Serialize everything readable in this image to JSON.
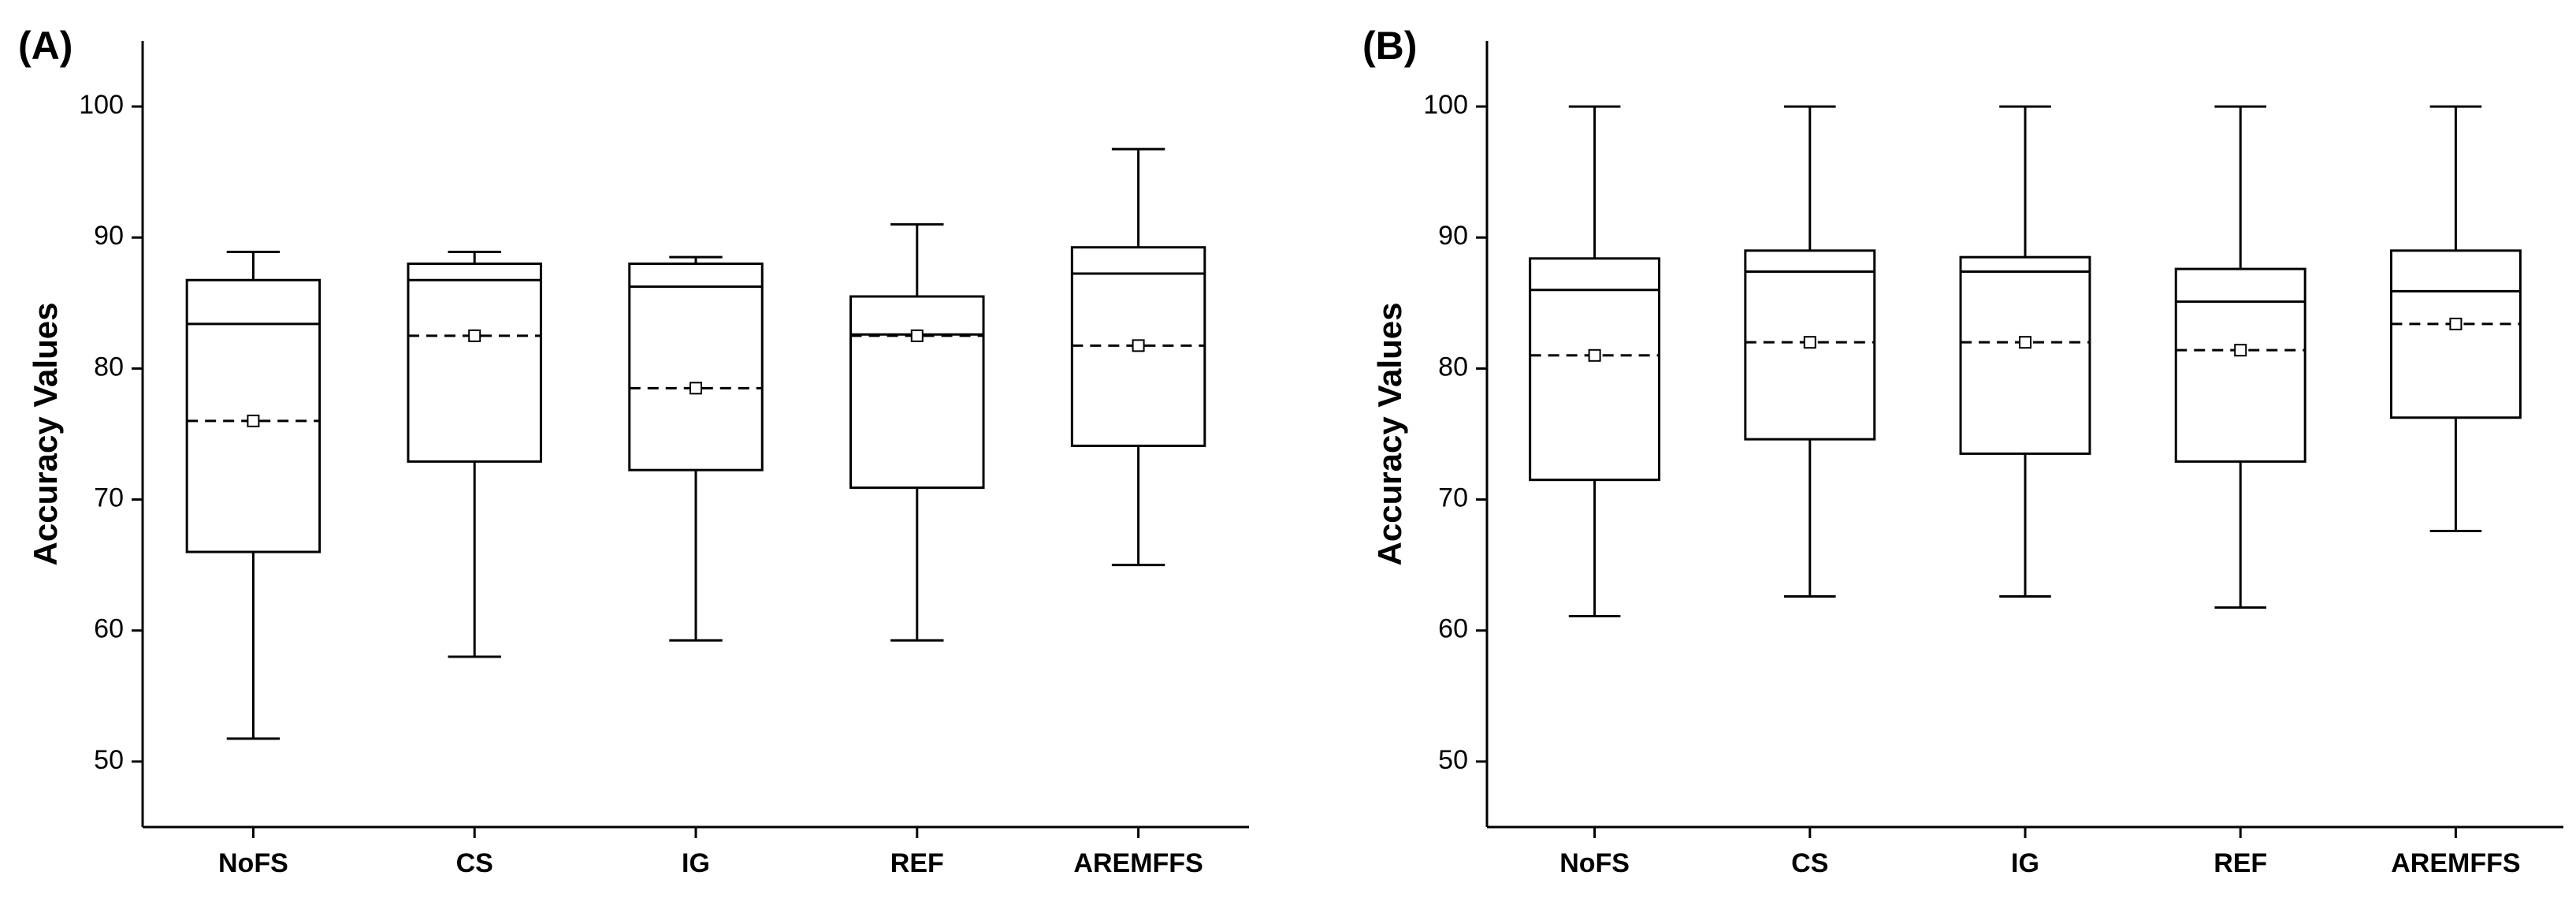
{
  "chart_data": [
    {
      "type": "box",
      "panel_label": "(A)",
      "ylabel": "Accuracy Values",
      "categories": [
        "NoFS",
        "CS",
        "IG",
        "REF",
        "AREMFFS"
      ],
      "low": [
        51.75,
        58,
        59.25,
        59.25,
        65
      ],
      "q1": [
        66,
        72.9,
        72.25,
        70.9,
        74.1
      ],
      "median": [
        83.4,
        86.75,
        86.25,
        82.6,
        87.25
      ],
      "q3": [
        86.75,
        88,
        88,
        85.5,
        89.25
      ],
      "high": [
        88.9,
        88.9,
        88.5,
        91,
        96.75
      ],
      "mean": [
        76,
        82.5,
        78.5,
        82.5,
        81.75
      ],
      "ylim": [
        45,
        105
      ],
      "yticks": [
        50,
        60,
        70,
        80,
        90,
        100
      ]
    },
    {
      "type": "box",
      "panel_label": "(B)",
      "ylabel": "Accuracy Values",
      "categories": [
        "NoFS",
        "CS",
        "IG",
        "REF",
        "AREMFFS"
      ],
      "low": [
        61.1,
        62.6,
        62.6,
        61.75,
        67.6
      ],
      "q1": [
        71.5,
        74.6,
        73.5,
        72.9,
        76.25
      ],
      "median": [
        86,
        87.4,
        87.4,
        85.1,
        85.9
      ],
      "q3": [
        88.4,
        89,
        88.5,
        87.6,
        89
      ],
      "high": [
        100,
        100,
        100,
        100,
        100
      ],
      "mean": [
        81,
        82,
        82,
        81.4,
        83.4
      ],
      "ylim": [
        45,
        105
      ],
      "yticks": [
        50,
        60,
        70,
        80,
        90,
        100
      ]
    }
  ]
}
